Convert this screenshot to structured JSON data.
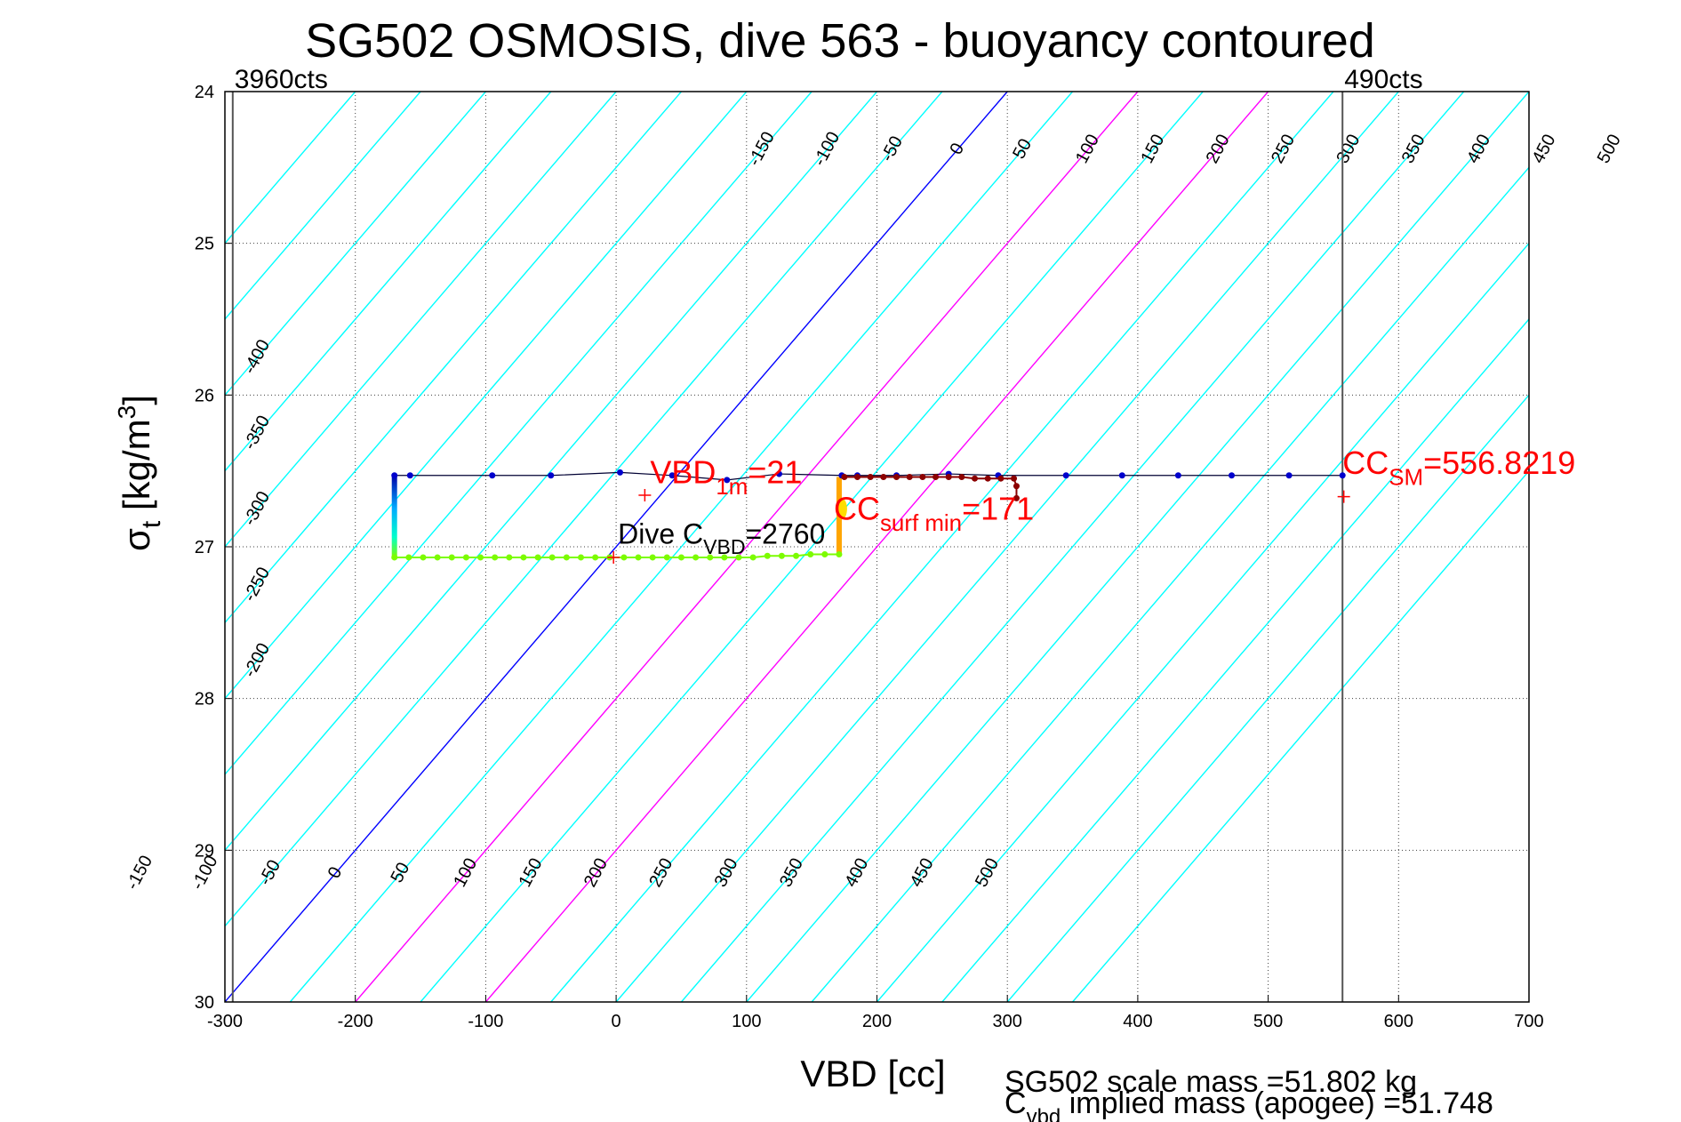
{
  "chart_data": {
    "type": "line",
    "title": "SG502 OSMOSIS, dive 563 - buoyancy contoured",
    "xlabel": "VBD [cc]",
    "ylabel_main": "σ",
    "ylabel_sub": "t",
    "ylabel_unit_pre": " [kg/m",
    "ylabel_unit_sup": "3",
    "ylabel_unit_post": "]",
    "xlim": [
      -300,
      700
    ],
    "ylim": [
      24,
      30
    ],
    "y_reversed": true,
    "grid": true,
    "xticks": [
      -300,
      -200,
      -100,
      0,
      100,
      200,
      300,
      400,
      500,
      600,
      700
    ],
    "yticks": [
      24,
      25,
      26,
      27,
      28,
      29,
      30
    ],
    "contours": {
      "slope_cc_per_sigma": 100,
      "values": [
        -500,
        -450,
        -400,
        -350,
        -300,
        -250,
        -200,
        -150,
        -100,
        -50,
        0,
        50,
        100,
        150,
        200,
        250,
        300,
        350,
        400,
        450,
        500,
        550,
        600,
        650
      ],
      "zero_color": "#0000ff",
      "highlight_values": [
        100,
        200
      ],
      "highlight_color": "#ff00ff",
      "color": "#00ffff",
      "top_labels": [
        "-150",
        "-100",
        "-50",
        "0",
        "50",
        "100",
        "150",
        "200",
        "250",
        "300",
        "350",
        "400",
        "450",
        "500"
      ],
      "left_labels": [
        "-400",
        "-350",
        "-300",
        "-250",
        "-200"
      ],
      "bottom_labels": [
        "-150",
        "-100",
        "-50",
        "0",
        "50",
        "100",
        "150",
        "200",
        "250",
        "300",
        "350",
        "400",
        "450",
        "500"
      ]
    },
    "vlines": [
      {
        "x": -294,
        "label": "3960cts"
      },
      {
        "x": 557,
        "label": "490cts"
      }
    ],
    "series": [
      {
        "x": [
          -170,
          -158,
          -95,
          -50,
          3,
          43,
          85,
          125,
          173,
          185,
          215,
          255,
          293,
          345,
          388,
          431,
          472,
          516,
          557
        ],
        "y": [
          26.53,
          26.53,
          26.53,
          26.53,
          26.51,
          26.53,
          26.56,
          26.52,
          26.53,
          26.53,
          26.53,
          26.52,
          26.53,
          26.53,
          26.53,
          26.53,
          26.53,
          26.53,
          26.53
        ],
        "color": "#0000cc"
      },
      {
        "x": [
          175,
          185,
          195,
          205,
          215,
          225,
          235,
          245,
          255,
          265,
          275,
          285,
          295,
          305,
          307,
          307
        ],
        "y": [
          26.54,
          26.54,
          26.54,
          26.54,
          26.54,
          26.54,
          26.54,
          26.54,
          26.54,
          26.54,
          26.55,
          26.55,
          26.55,
          26.55,
          26.6,
          26.68
        ],
        "color": "#8b0000"
      },
      {
        "x": [
          -170,
          -159,
          -148,
          -137,
          -126,
          -115,
          -104,
          -93,
          -82,
          -71,
          -60,
          -49,
          -38,
          -27,
          -16,
          -5,
          6,
          17,
          28,
          39,
          50,
          61,
          72,
          83,
          94,
          105,
          116,
          127,
          138,
          149,
          160,
          171
        ],
        "y": [
          27.07,
          27.07,
          27.07,
          27.07,
          27.07,
          27.07,
          27.07,
          27.07,
          27.07,
          27.07,
          27.07,
          27.07,
          27.07,
          27.07,
          27.07,
          27.07,
          27.07,
          27.07,
          27.07,
          27.07,
          27.07,
          27.07,
          27.07,
          27.07,
          27.07,
          27.07,
          27.06,
          27.06,
          27.06,
          27.05,
          27.05,
          27.05
        ],
        "color": "#7cfc00"
      }
    ],
    "markers": [
      {
        "x": 22,
        "y": 26.66,
        "color": "#ff0000"
      },
      {
        "x": 558,
        "y": 26.67,
        "color": "#ff0000"
      },
      {
        "x": -2,
        "y": 27.07,
        "color": "#ff0000"
      }
    ],
    "annotations": {
      "vbd1m": {
        "main": "VBD",
        "sub": "1m",
        "post": "=21",
        "color": "#ff0000"
      },
      "ccsurf": {
        "main": "CC",
        "sub": "surf min",
        "post": "=171",
        "color": "#ff0000"
      },
      "dive_cvbd": {
        "pre": "Dive C",
        "sub": "VBD",
        "post": "=2760",
        "color": "#000000"
      },
      "ccsm": {
        "main": "CC",
        "sub": "SM",
        "post": "=556.8219",
        "color": "#ff0000"
      }
    },
    "footer": {
      "line1": "SG502 scale mass =51.802 kg",
      "line2_pre": "C",
      "line2_sub": "vbd",
      "line2_post": " implied mass (apogee) =51.748"
    }
  }
}
